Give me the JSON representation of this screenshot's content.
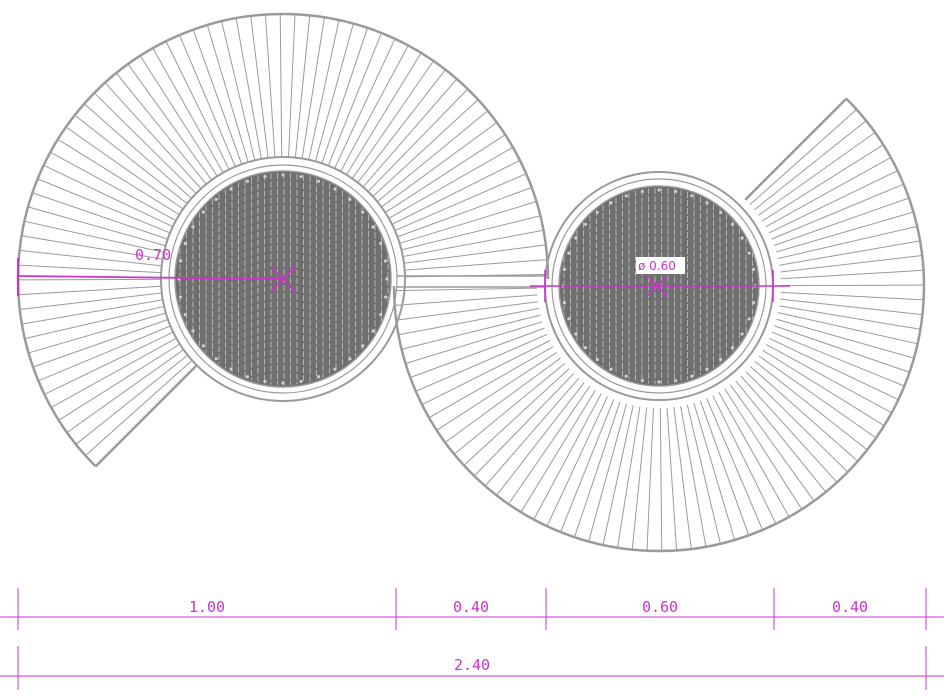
{
  "colors": {
    "line": "#9a9a9a",
    "grate_fill": "#6f6f6f",
    "grate_bar": "#b5b5b5",
    "dimension": "#cc33cc",
    "background": "#ffffff"
  },
  "labels": {
    "radius_large": "0.70",
    "diameter_small": "ø 0.60"
  },
  "dimensions_row1": [
    "1.00",
    "0.40",
    "0.60",
    "0.40"
  ],
  "dimensions_row2": [
    "2.40"
  ]
}
